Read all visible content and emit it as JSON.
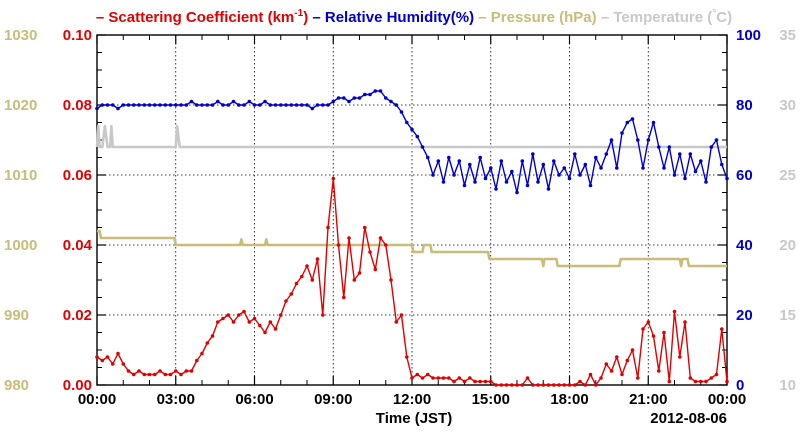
{
  "chart_data": {
    "type": "line",
    "legend_position": "top",
    "legend": [
      {
        "label": "Scattering Coefficient (km",
        "sup": "-1",
        "suffix": ")",
        "color": "#e00000"
      },
      {
        "label": "Relative Humidity(%)",
        "sup": "",
        "suffix": "",
        "color": "#0000cc"
      },
      {
        "label": "Pressure (hPa)",
        "sup": "",
        "suffix": "",
        "color": "#c8bc78"
      },
      {
        "label": "Temperature (",
        "sup": "°",
        "suffix": "C)",
        "color": "#c8c8c8"
      }
    ],
    "xlabel": "Time (JST)",
    "date_label": "2012-08-06",
    "grid": true,
    "x_range": [
      0,
      24
    ],
    "x_ticks": [
      {
        "value": 0,
        "label": "00:00"
      },
      {
        "value": 3,
        "label": "03:00"
      },
      {
        "value": 6,
        "label": "06:00"
      },
      {
        "value": 9,
        "label": "09:00"
      },
      {
        "value": 12,
        "label": "12:00"
      },
      {
        "value": 15,
        "label": "15:00"
      },
      {
        "value": 18,
        "label": "18:00"
      },
      {
        "value": 21,
        "label": "21:00"
      },
      {
        "value": 24,
        "label": "00:00"
      }
    ],
    "axes": {
      "pressure": {
        "range": [
          980,
          1030
        ],
        "ticks": [
          "980",
          "990",
          "1000",
          "1010",
          "1020",
          "1030"
        ],
        "color": "#c8bc78"
      },
      "scattering": {
        "range": [
          0,
          0.1
        ],
        "ticks": [
          "0.00",
          "0.02",
          "0.04",
          "0.06",
          "0.08",
          "0.10"
        ],
        "color": "#e00000"
      },
      "humidity": {
        "range": [
          0,
          100
        ],
        "ticks": [
          "0",
          "20",
          "40",
          "60",
          "80",
          "100"
        ],
        "color": "#0000cc"
      },
      "temperature": {
        "range": [
          10,
          35
        ],
        "ticks": [
          "10",
          "15",
          "20",
          "25",
          "30",
          "35"
        ],
        "color": "#c8c8c8"
      }
    },
    "series": [
      {
        "key": "temperature",
        "name": "Temperature",
        "axis": "temperature",
        "color": "#c8c8c8",
        "markers": false,
        "x": [
          0,
          0.05,
          0.1,
          0.2,
          0.3,
          0.4,
          0.5,
          0.55,
          0.6,
          0.7,
          3.0,
          3.05,
          3.15,
          3.25,
          24
        ],
        "y": [
          27,
          28.5,
          27,
          27,
          28.5,
          27,
          27,
          28.5,
          27,
          27,
          27,
          28.5,
          27,
          27,
          27
        ]
      },
      {
        "key": "pressure",
        "name": "Pressure",
        "axis": "pressure",
        "color": "#c8bc78",
        "markers": false,
        "x": [
          0,
          0.1,
          0.15,
          2.95,
          3.0,
          5.45,
          5.5,
          5.55,
          6.4,
          6.45,
          6.5,
          12.0,
          12.05,
          12.4,
          12.45,
          12.7,
          12.75,
          14.9,
          14.95,
          16.95,
          17.0,
          17.05,
          17.5,
          17.55,
          19.9,
          19.95,
          22.2,
          22.25,
          22.3,
          22.5,
          22.55,
          24.0
        ],
        "y": [
          1002,
          1002,
          1001,
          1001,
          1000,
          1000,
          1000.8,
          1000,
          1000,
          1000.8,
          1000,
          1000,
          999,
          999,
          1000,
          1000,
          999,
          999,
          998,
          998,
          997,
          998,
          998,
          997,
          997,
          998,
          998,
          997,
          998,
          998,
          997,
          997
        ]
      },
      {
        "key": "humidity",
        "name": "Relative Humidity",
        "axis": "humidity",
        "color": "#0000cc",
        "markers": true,
        "x": [
          0.0,
          0.2,
          0.4,
          0.6,
          0.8,
          1.0,
          1.2,
          1.4,
          1.6,
          1.8,
          2.0,
          2.2,
          2.4,
          2.6,
          2.8,
          3.0,
          3.2,
          3.4,
          3.6,
          3.8,
          4.0,
          4.2,
          4.4,
          4.6,
          4.8,
          5.0,
          5.2,
          5.4,
          5.6,
          5.8,
          6.0,
          6.2,
          6.4,
          6.6,
          6.8,
          7.0,
          7.2,
          7.4,
          7.6,
          7.8,
          8.0,
          8.2,
          8.4,
          8.6,
          8.8,
          9.0,
          9.2,
          9.4,
          9.6,
          9.8,
          10.0,
          10.2,
          10.4,
          10.6,
          10.8,
          11.0,
          11.2,
          11.4,
          11.6,
          11.8,
          12.0,
          12.2,
          12.4,
          12.6,
          12.8,
          13.0,
          13.2,
          13.4,
          13.6,
          13.8,
          14.0,
          14.2,
          14.4,
          14.6,
          14.8,
          15.0,
          15.2,
          15.4,
          15.6,
          15.8,
          16.0,
          16.2,
          16.4,
          16.6,
          16.8,
          17.0,
          17.2,
          17.4,
          17.6,
          17.8,
          18.0,
          18.2,
          18.4,
          18.6,
          18.8,
          19.0,
          19.2,
          19.4,
          19.6,
          19.8,
          20.0,
          20.2,
          20.4,
          20.6,
          20.8,
          21.0,
          21.2,
          21.4,
          21.6,
          21.8,
          22.0,
          22.2,
          22.4,
          22.6,
          22.8,
          23.0,
          23.2,
          23.4,
          23.6,
          23.8,
          24.0
        ],
        "y": [
          79,
          80,
          80,
          80,
          79,
          80,
          80,
          80,
          80,
          80,
          80,
          80,
          80,
          80,
          80,
          80,
          80,
          80,
          81,
          80,
          80,
          80,
          80,
          81,
          80,
          80,
          81,
          80,
          80,
          81,
          80,
          80,
          81,
          80,
          80,
          80,
          80,
          80,
          80,
          80,
          80,
          79,
          80,
          80,
          80,
          81,
          82,
          82,
          81,
          82,
          82,
          83,
          83,
          84,
          84,
          82,
          81,
          80,
          78,
          75,
          73,
          71,
          68,
          65,
          60,
          64,
          58,
          65,
          60,
          64,
          57,
          63,
          58,
          65,
          59,
          62,
          56,
          64,
          58,
          61,
          55,
          64,
          57,
          66,
          58,
          63,
          56,
          64,
          60,
          62,
          59,
          66,
          60,
          63,
          57,
          65,
          62,
          66,
          70,
          62,
          72,
          75,
          76,
          70,
          62,
          70,
          75,
          68,
          62,
          68,
          60,
          66,
          59,
          66,
          61,
          64,
          58,
          68,
          70,
          63,
          59
        ]
      },
      {
        "key": "scattering",
        "name": "Scattering Coefficient",
        "axis": "scattering",
        "color": "#e00000",
        "markers": true,
        "x": [
          0.0,
          0.2,
          0.4,
          0.6,
          0.8,
          1.0,
          1.2,
          1.4,
          1.6,
          1.8,
          2.0,
          2.2,
          2.4,
          2.6,
          2.8,
          3.0,
          3.2,
          3.4,
          3.6,
          3.8,
          4.0,
          4.2,
          4.4,
          4.6,
          4.8,
          5.0,
          5.2,
          5.4,
          5.6,
          5.8,
          6.0,
          6.2,
          6.4,
          6.6,
          6.8,
          7.0,
          7.2,
          7.4,
          7.6,
          7.8,
          8.0,
          8.2,
          8.4,
          8.6,
          8.8,
          9.0,
          9.2,
          9.4,
          9.6,
          9.8,
          10.0,
          10.2,
          10.4,
          10.6,
          10.8,
          11.0,
          11.2,
          11.4,
          11.6,
          11.8,
          12.0,
          12.2,
          12.4,
          12.6,
          12.8,
          13.0,
          13.2,
          13.4,
          13.6,
          13.8,
          14.0,
          14.2,
          14.4,
          14.6,
          14.8,
          15.0,
          15.2,
          15.4,
          15.6,
          15.8,
          16.0,
          16.2,
          16.4,
          16.6,
          16.8,
          17.0,
          17.2,
          17.4,
          17.6,
          17.8,
          18.0,
          18.2,
          18.4,
          18.6,
          18.8,
          19.0,
          19.2,
          19.4,
          19.6,
          19.8,
          20.0,
          20.2,
          20.4,
          20.6,
          20.8,
          21.0,
          21.2,
          21.4,
          21.6,
          21.8,
          22.0,
          22.2,
          22.4,
          22.6,
          22.8,
          23.0,
          23.2,
          23.4,
          23.6,
          23.8,
          24.0
        ],
        "y": [
          0.008,
          0.007,
          0.008,
          0.006,
          0.009,
          0.006,
          0.004,
          0.003,
          0.004,
          0.003,
          0.003,
          0.003,
          0.004,
          0.003,
          0.003,
          0.004,
          0.003,
          0.004,
          0.004,
          0.007,
          0.009,
          0.012,
          0.014,
          0.018,
          0.019,
          0.02,
          0.018,
          0.02,
          0.021,
          0.018,
          0.019,
          0.017,
          0.015,
          0.018,
          0.016,
          0.02,
          0.024,
          0.026,
          0.029,
          0.031,
          0.034,
          0.03,
          0.036,
          0.02,
          0.045,
          0.059,
          0.04,
          0.025,
          0.042,
          0.03,
          0.032,
          0.045,
          0.038,
          0.033,
          0.042,
          0.04,
          0.03,
          0.018,
          0.02,
          0.008,
          0.002,
          0.003,
          0.002,
          0.003,
          0.002,
          0.002,
          0.002,
          0.002,
          0.001,
          0.002,
          0.001,
          0.002,
          0.001,
          0.001,
          0.001,
          0.001,
          0.0,
          0.0,
          0.0,
          0.0,
          0.0,
          0.0,
          0.002,
          0.0,
          0.0,
          0.0,
          0.0,
          0.0,
          0.0,
          0.0,
          0.0,
          0.0,
          0.001,
          0.0,
          0.003,
          0.0,
          0.002,
          0.006,
          0.004,
          0.008,
          0.003,
          0.007,
          0.01,
          0.002,
          0.016,
          0.018,
          0.014,
          0.004,
          0.015,
          0.001,
          0.021,
          0.008,
          0.018,
          0.002,
          0.001,
          0.001,
          0.001,
          0.002,
          0.003,
          0.016,
          0.001
        ]
      }
    ]
  }
}
